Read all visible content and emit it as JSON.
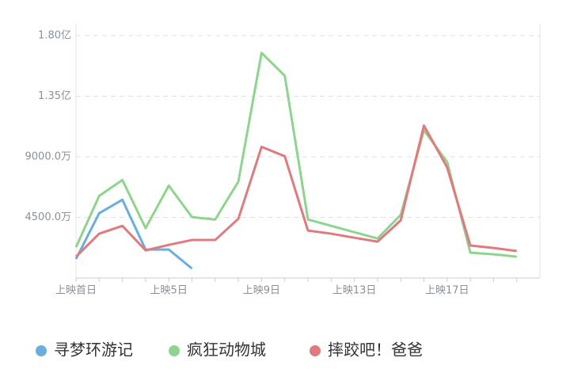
{
  "chart_data": {
    "type": "line",
    "categories": [
      "上映首日",
      null,
      null,
      null,
      "上映5日",
      null,
      null,
      null,
      "上映9日",
      null,
      null,
      null,
      "上映13日",
      null,
      null,
      null,
      "上映17日",
      null,
      null,
      null
    ],
    "series": [
      {
        "name": "寻梦环游记",
        "color": "#6aaee0",
        "values": [
          1410,
          4810,
          5810,
          2110,
          2110,
          700,
          null,
          null,
          null,
          null,
          null,
          null,
          null,
          null,
          null,
          null,
          null,
          null,
          null,
          null
        ]
      },
      {
        "name": "疯狂动物城",
        "color": "#8ed48e",
        "values": [
          2290,
          6100,
          7280,
          3700,
          6860,
          4520,
          4340,
          7160,
          16720,
          15020,
          4340,
          3870,
          3400,
          2930,
          4690,
          10970,
          8620,
          1880,
          1760,
          1580
        ]
      },
      {
        "name": "摔跤吧！爸爸",
        "color": "#e07a7e",
        "values": [
          1580,
          3290,
          3870,
          2050,
          2460,
          2820,
          2820,
          4400,
          9740,
          9040,
          3520,
          3290,
          2990,
          2700,
          4280,
          11320,
          8210,
          2410,
          2230,
          2000
        ]
      }
    ],
    "ylim": [
      0,
      18000
    ],
    "yticks": [
      {
        "value": 4500,
        "label": "4500.0万"
      },
      {
        "value": 9000,
        "label": "9000.0万"
      },
      {
        "value": 13500,
        "label": "1.35亿"
      },
      {
        "value": 18000,
        "label": "1.80亿"
      }
    ],
    "grid": true
  }
}
